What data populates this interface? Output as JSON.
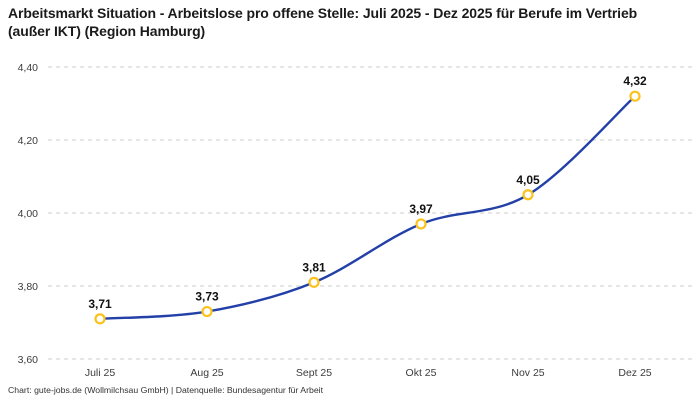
{
  "header": {
    "title": "Arbeitsmarkt Situation - Arbeitslose pro offene Stelle: Juli 2025 - Dez 2025 für Berufe im Vertrieb (außer IKT) (Region Hamburg)"
  },
  "footer": {
    "credit": "Chart: gute-jobs.de (Wollmilchsau GmbH) | Datenquelle: Bundesagentur für Arbeit"
  },
  "chart_data": {
    "type": "line",
    "title": "Arbeitsmarkt Situation - Arbeitslose pro offene Stelle: Juli 2025 - Dez 2025 für Berufe im Vertrieb (außer IKT) (Region Hamburg)",
    "categories": [
      "Juli 25",
      "Aug 25",
      "Sept 25",
      "Okt 25",
      "Nov 25",
      "Dez 25"
    ],
    "values": [
      3.71,
      3.73,
      3.81,
      3.97,
      4.05,
      4.32
    ],
    "point_labels": [
      "3,71",
      "3,73",
      "3,81",
      "3,97",
      "4,05",
      "4,32"
    ],
    "y_ticks": [
      {
        "value": 4.4,
        "label": "4,40"
      },
      {
        "value": 4.2,
        "label": "4,20"
      },
      {
        "value": 4.0,
        "label": "4,00"
      },
      {
        "value": 3.8,
        "label": "3,80"
      },
      {
        "value": 3.6,
        "label": "3,60"
      }
    ],
    "ylim": [
      3.6,
      4.4
    ],
    "xlabel": "",
    "ylabel": "",
    "grid": "horizontal-dashed",
    "legend": "none",
    "colors": {
      "line": "#2340a8",
      "marker_ring": "#fcc21c",
      "marker_fill": "#ffffff",
      "gridline": "#cccccc",
      "tick_text": "#3c3c3c",
      "point_label_text": "#111111"
    }
  }
}
